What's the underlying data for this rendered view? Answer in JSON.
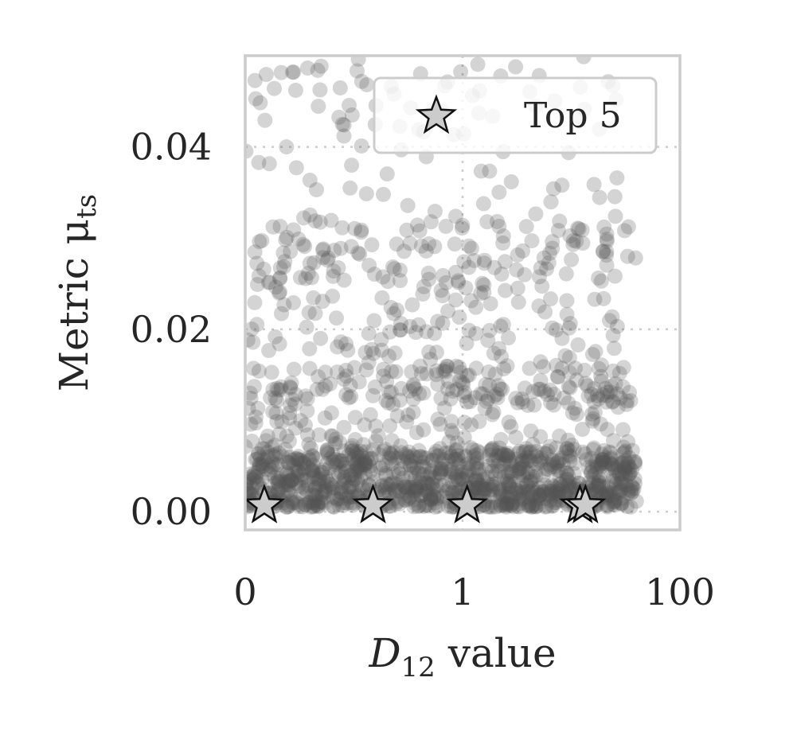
{
  "chart_data": {
    "type": "scatter",
    "xlabel_main": "D",
    "xlabel_sub": "12",
    "xlabel_rest": " value",
    "ylabel_main": "Metric μ",
    "ylabel_sub": "ts",
    "x_scale": "log",
    "x_ticks": [
      {
        "value": 0.01,
        "label": "0"
      },
      {
        "value": 1,
        "label": "1"
      },
      {
        "value": 100,
        "label": "100"
      }
    ],
    "y_ticks": [
      {
        "value": 0.0,
        "label": "0.00"
      },
      {
        "value": 0.02,
        "label": "0.02"
      },
      {
        "value": 0.04,
        "label": "0.04"
      }
    ],
    "xlim": [
      0.01,
      100
    ],
    "ylim": [
      -0.002,
      0.05
    ],
    "grid": true,
    "legend": {
      "placement": "top-right",
      "entries": [
        {
          "label": "Top 5",
          "marker": "star"
        }
      ]
    },
    "colors": {
      "points": "#555555",
      "star_fill": "#cccccc",
      "star_edge": "#111111",
      "frame": "#cccccc"
    },
    "point_alpha": 0.25,
    "point_bands": [
      {
        "y_min": 0.0005,
        "y_max": 0.007,
        "x_min": 0.01,
        "x_max": 40,
        "count": 900
      },
      {
        "y_min": 0.002,
        "y_max": 0.016,
        "x_min": 0.01,
        "x_max": 40,
        "count": 320
      },
      {
        "y_min": 0.012,
        "y_max": 0.032,
        "x_min": 0.01,
        "x_max": 30,
        "count": 260
      },
      {
        "y_min": 0.025,
        "y_max": 0.05,
        "x_min": 0.01,
        "x_max": 40,
        "count": 160
      }
    ],
    "top5": [
      {
        "x": 0.015,
        "y": 0.0005
      },
      {
        "x": 0.15,
        "y": 0.0005
      },
      {
        "x": 1.1,
        "y": 0.0005
      },
      {
        "x": 12,
        "y": 0.0005
      },
      {
        "x": 13.5,
        "y": 0.0005
      }
    ]
  }
}
